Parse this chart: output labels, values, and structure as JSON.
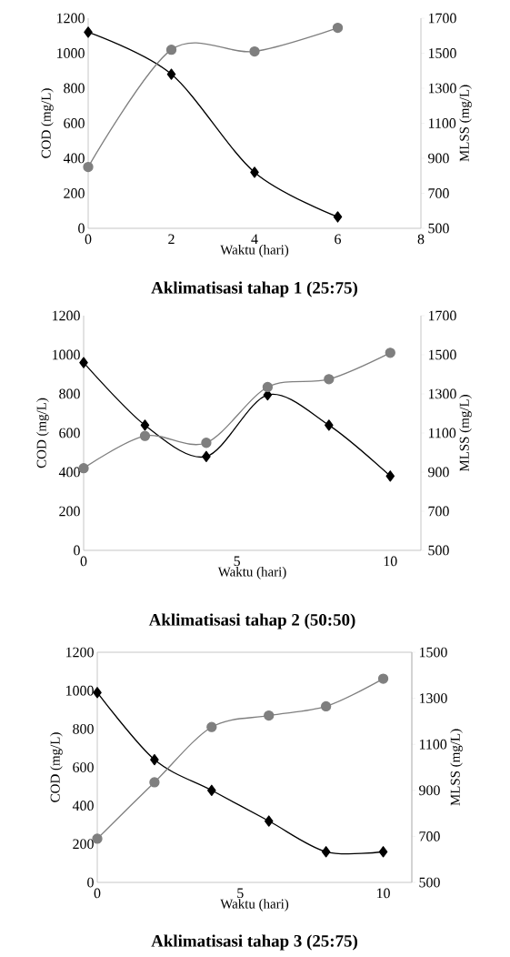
{
  "chart_data": [
    {
      "type": "line",
      "title": "Aklimatisasi tahap 1 (25:75)",
      "xlabel": "Waktu (hari)",
      "ylabel": "COD (mg/L)",
      "y2label": "MLSS (mg/L)",
      "x": [
        0,
        2,
        4,
        6
      ],
      "xlim": [
        0,
        8
      ],
      "xticks": [
        0,
        2,
        4,
        6,
        8
      ],
      "ylim": [
        0,
        1200
      ],
      "yticks": [
        0,
        200,
        400,
        600,
        800,
        1000,
        1200
      ],
      "y2lim": [
        500,
        1700
      ],
      "y2ticks": [
        500,
        700,
        900,
        1100,
        1300,
        1500,
        1700
      ],
      "series": [
        {
          "color": "#000000",
          "marker": "diamond",
          "values": [
            1120,
            880,
            320,
            65
          ]
        },
        {
          "color": "#7f7f7f",
          "marker": "circle",
          "axis": "y2",
          "values": [
            850,
            1520,
            1510,
            1645
          ]
        }
      ]
    },
    {
      "type": "line",
      "title": "Aklimatisasi tahap 2 (50:50)",
      "xlabel": "Waktu (hari)",
      "ylabel": "COD (mg/L)",
      "y2label": "MLSS (mg/L)",
      "x": [
        0,
        2,
        4,
        6,
        8,
        10
      ],
      "xlim": [
        0,
        11
      ],
      "xticks": [
        0,
        5,
        10
      ],
      "ylim": [
        0,
        1200
      ],
      "yticks": [
        0,
        200,
        400,
        600,
        800,
        1000,
        1200
      ],
      "y2lim": [
        500,
        1700
      ],
      "y2ticks": [
        500,
        700,
        900,
        1100,
        1300,
        1500,
        1700
      ],
      "series": [
        {
          "color": "#000000",
          "marker": "diamond",
          "values": [
            960,
            640,
            480,
            795,
            640,
            380
          ]
        },
        {
          "color": "#7f7f7f",
          "marker": "circle",
          "axis": "y2",
          "values": [
            920,
            1085,
            1050,
            1335,
            1375,
            1510
          ]
        }
      ]
    },
    {
      "type": "line",
      "title": "Aklimatisasi tahap 3 (25:75)",
      "xlabel": "Waktu (hari)",
      "ylabel": "COD (mg/L)",
      "y2label": "MLSS (mg/L)",
      "x": [
        0,
        2,
        4,
        6,
        8,
        10
      ],
      "xlim": [
        0,
        11
      ],
      "xticks": [
        0,
        5,
        10
      ],
      "ylim": [
        0,
        1200
      ],
      "yticks": [
        0,
        200,
        400,
        600,
        800,
        1000,
        1200
      ],
      "y2lim": [
        500,
        1500
      ],
      "y2ticks": [
        500,
        700,
        900,
        1100,
        1300,
        1500
      ],
      "series": [
        {
          "color": "#000000",
          "marker": "diamond",
          "values": [
            990,
            640,
            480,
            320,
            160,
            160
          ]
        },
        {
          "color": "#7f7f7f",
          "marker": "circle",
          "axis": "y2",
          "values": [
            690,
            935,
            1175,
            1225,
            1265,
            1385
          ]
        }
      ]
    }
  ]
}
